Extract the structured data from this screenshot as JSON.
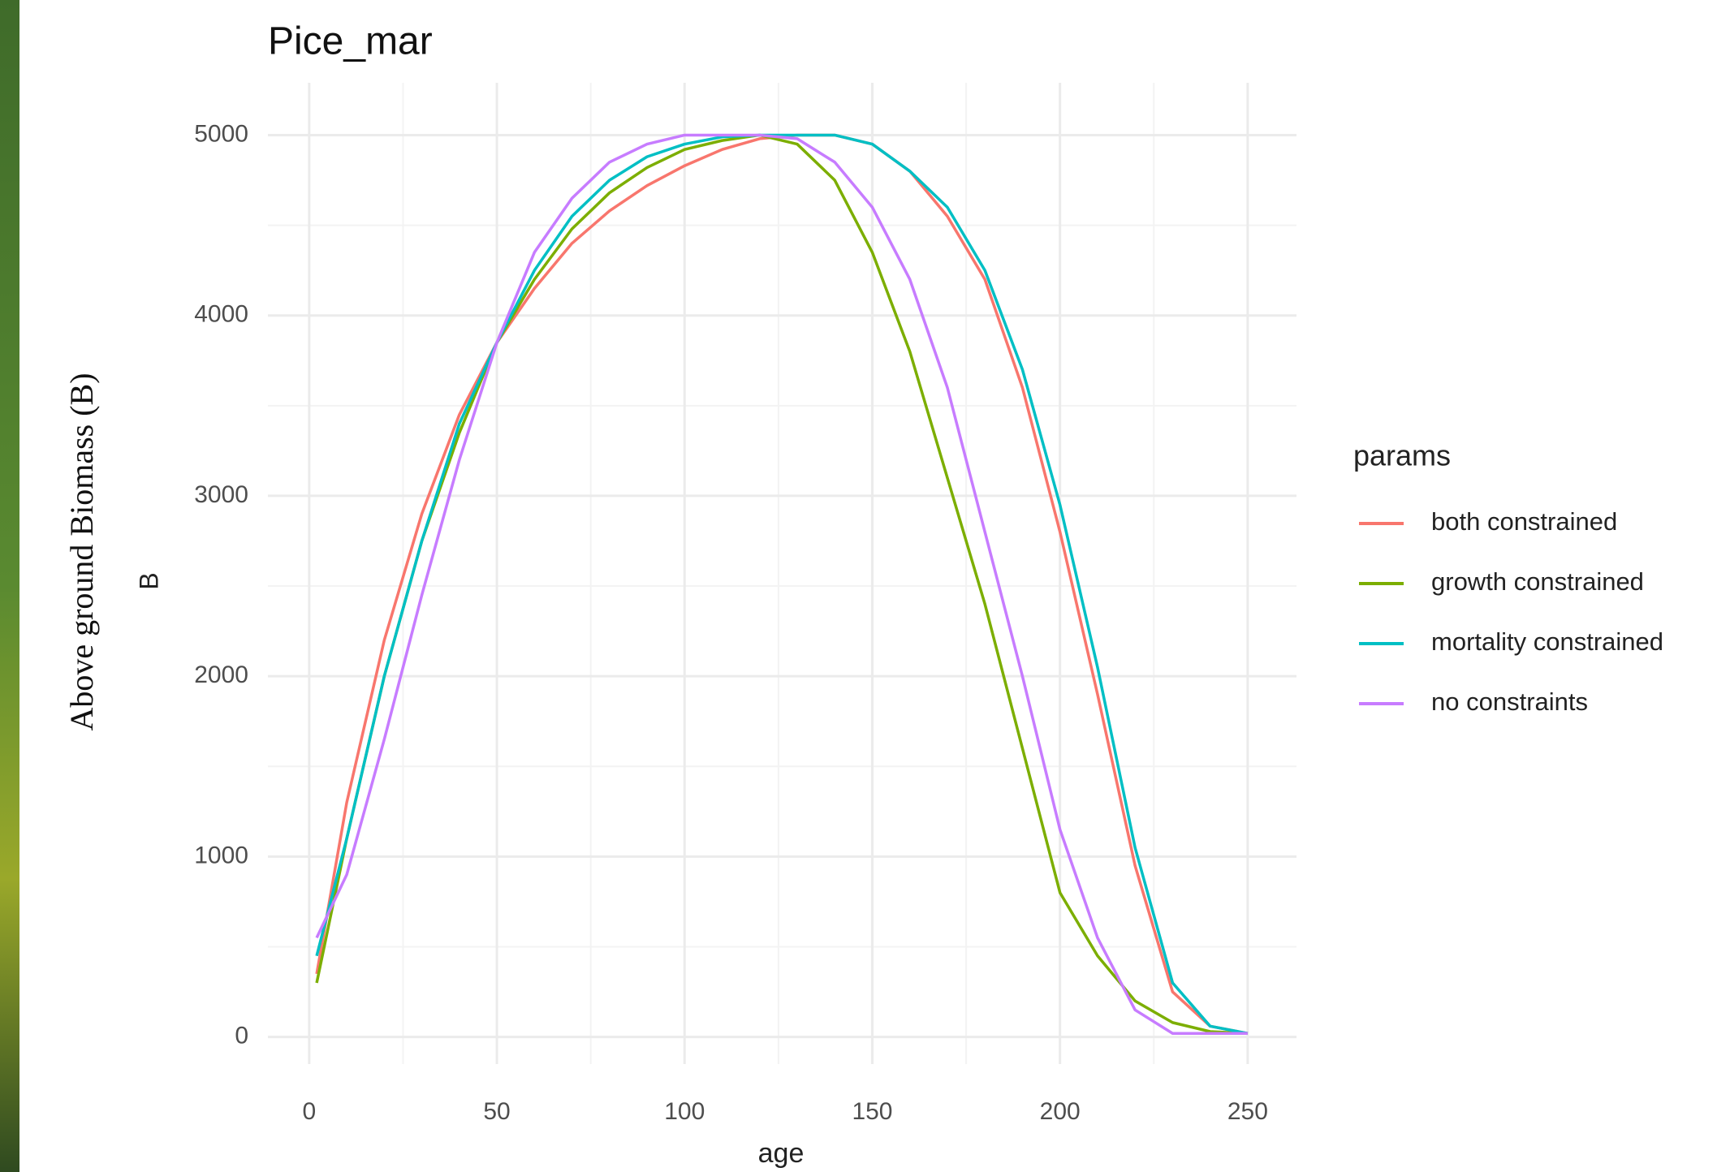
{
  "chart_data": {
    "type": "line",
    "title": "Pice_mar",
    "side_label": "Above ground Biomass (B)",
    "x_label": "age",
    "y_label": "B",
    "legend_title": "params",
    "legend_position": "right",
    "grid": true,
    "x": [
      2,
      10,
      20,
      30,
      40,
      50,
      60,
      70,
      80,
      90,
      100,
      110,
      120,
      130,
      140,
      150,
      160,
      170,
      180,
      190,
      200,
      210,
      220,
      230,
      240,
      250
    ],
    "series": [
      {
        "name": "both constrained",
        "color": "#f8766d",
        "values": [
          350,
          1300,
          2200,
          2900,
          3450,
          3850,
          4150,
          4400,
          4580,
          4720,
          4830,
          4920,
          4980,
          5000,
          5000,
          4950,
          4800,
          4550,
          4200,
          3600,
          2800,
          1900,
          950,
          250,
          60,
          20
        ]
      },
      {
        "name": "growth constrained",
        "color": "#7cae00",
        "values": [
          300,
          1100,
          2000,
          2750,
          3350,
          3850,
          4200,
          4480,
          4680,
          4820,
          4920,
          4970,
          5000,
          4950,
          4750,
          4350,
          3800,
          3100,
          2400,
          1600,
          800,
          450,
          200,
          80,
          30,
          20
        ]
      },
      {
        "name": "mortality constrained",
        "color": "#00bfc4",
        "values": [
          450,
          1100,
          2000,
          2750,
          3400,
          3850,
          4250,
          4550,
          4750,
          4880,
          4950,
          4990,
          5000,
          5000,
          5000,
          4950,
          4800,
          4600,
          4250,
          3700,
          2950,
          2050,
          1050,
          300,
          60,
          20
        ]
      },
      {
        "name": "no constraints",
        "color": "#c77cff",
        "values": [
          550,
          900,
          1650,
          2450,
          3200,
          3850,
          4350,
          4650,
          4850,
          4950,
          5000,
          5000,
          5000,
          4980,
          4850,
          4600,
          4200,
          3600,
          2800,
          2000,
          1150,
          550,
          150,
          20,
          20,
          20
        ]
      }
    ],
    "xlim": [
      -11,
      263
    ],
    "ylim": [
      -150,
      5290
    ],
    "xticks": [
      0,
      50,
      100,
      150,
      200,
      250
    ],
    "yticks": [
      0,
      1000,
      2000,
      3000,
      4000,
      5000
    ]
  }
}
